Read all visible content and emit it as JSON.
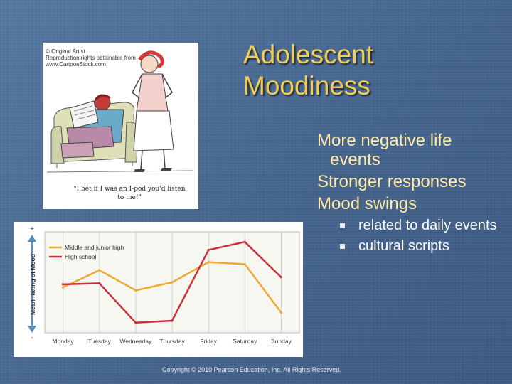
{
  "slide": {
    "title_lines": [
      "Adolescent",
      "Moodiness"
    ],
    "bullets": [
      "More negative life events",
      "Stronger responses",
      "Mood swings"
    ],
    "sub_bullets": [
      "related to daily events",
      "cultural scripts"
    ],
    "copyright": "Copyright © 2010 Pearson Education, Inc. All Rights Reserved.",
    "colors": {
      "title": "#f2cc56",
      "bullet_text": "#ffe9a6",
      "background": "#4a6a93"
    }
  },
  "cartoon": {
    "credit_lines": [
      "© Original Artist",
      "Reproduction rights obtainable from",
      "www.CartoonStock.com"
    ],
    "caption": "\"I bet if I was an I-pod you'd listen to me!\""
  },
  "chart_data": {
    "type": "line",
    "categories": [
      "Monday",
      "Tuesday",
      "Wednesday",
      "Thursday",
      "Friday",
      "Saturday",
      "Sunday"
    ],
    "series": [
      {
        "name": "Middle and junior high",
        "color": "#f0a830",
        "values": [
          0.45,
          0.62,
          0.42,
          0.5,
          0.7,
          0.68,
          0.2
        ]
      },
      {
        "name": "High school",
        "color": "#c8323c",
        "values": [
          0.48,
          0.49,
          0.1,
          0.12,
          0.82,
          0.9,
          0.55
        ]
      }
    ],
    "ylabel": "Mean Rating of Mood",
    "y_axis_marks": {
      "top": "+",
      "bottom": "-"
    },
    "ylim": [
      0,
      1
    ],
    "grid": "vertical",
    "legend": "top-left"
  }
}
